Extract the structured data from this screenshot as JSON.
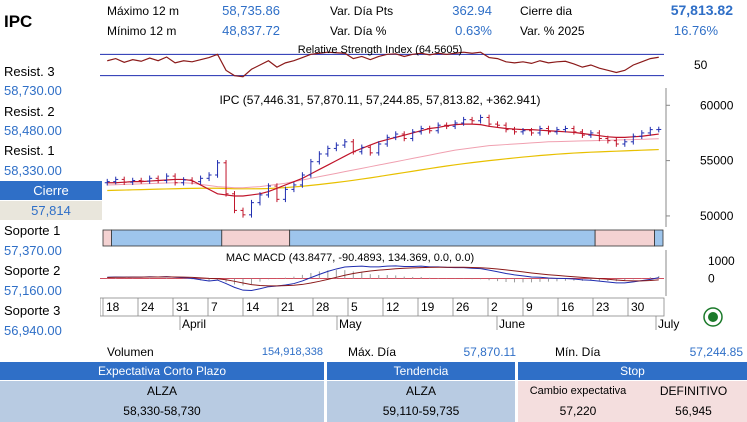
{
  "ticker": "IPC",
  "stats": [
    {
      "label": "Máximo 12 m",
      "value": "58,735.86"
    },
    {
      "label": "Mínimo 12 m",
      "value": "48,837.72"
    },
    {
      "label": "Var. Día Pts",
      "value": "362.94"
    },
    {
      "label": "Var. Día %",
      "value": "0.63%"
    },
    {
      "label": "Cierre dia",
      "value": "57,813.82"
    },
    {
      "label": "Var. % 2025",
      "value": "16.76%"
    }
  ],
  "levels": {
    "resist3": {
      "label": "Resist. 3",
      "value": "58,730.00"
    },
    "resist2": {
      "label": "Resist. 2",
      "value": "58,480.00"
    },
    "resist1": {
      "label": "Resist. 1",
      "value": "58,330.00"
    },
    "cierre": {
      "label": "Cierre",
      "value": "57,814"
    },
    "soporte1": {
      "label": "Soporte 1",
      "value": "57,370.00"
    },
    "soporte2": {
      "label": "Soporte 2",
      "value": "57,160.00"
    },
    "soporte3": {
      "label": "Soporte 3",
      "value": "56,940.00"
    }
  },
  "bottom_stats": {
    "volumen": {
      "label": "Volumen",
      "value": "154,918,338"
    },
    "max_dia": {
      "label": "Máx. Día",
      "value": "57,870.11"
    },
    "min_dia": {
      "label": "Mín. Día",
      "value": "57,244.85"
    }
  },
  "table": {
    "h1": "Expectativa Corto Plazo",
    "h2": "Tendencia",
    "h3": "Stop",
    "r1c1": "ALZA",
    "r2c1": "58,330-58,730",
    "r1c2": "ALZA",
    "r2c2": "59,110-59,735",
    "r1c3a": "Cambio expectativa",
    "r1c3b": "DEFINITIVO",
    "r2c3a": "57,220",
    "r2c3b": "56,945"
  },
  "colors": {
    "accent": "#2f6fc7",
    "up": "#1f2db0",
    "down": "#c0142a",
    "rsi": "#8b1a1a",
    "ma_short": "#c0142a",
    "ma_mid": "#f0a0b0",
    "ma_long": "#e8c000"
  },
  "chart_data": {
    "type": "candlestick",
    "title": "IPC (57,446.31, 57,870.11, 57,244.85, 57,813.82, +362.941)",
    "price_axis": {
      "ylim": [
        49000,
        61200
      ],
      "ticks": [
        50000,
        55000,
        60000
      ],
      "tick_labels": [
        "50000",
        "55000",
        "60000"
      ]
    },
    "x_tick_labels": [
      "18",
      "24",
      "31",
      "7",
      "14",
      "21",
      "28",
      "5",
      "12",
      "19",
      "26",
      "2",
      "9",
      "16",
      "23",
      "30"
    ],
    "month_labels": [
      "April",
      "May",
      "June",
      "July"
    ],
    "closes": [
      53100,
      53300,
      53050,
      53200,
      53150,
      53400,
      53200,
      53600,
      53000,
      53250,
      53100,
      53400,
      53700,
      54800,
      52000,
      50500,
      50100,
      51200,
      51900,
      52700,
      51500,
      52400,
      52800,
      53700,
      54900,
      55600,
      56100,
      56400,
      56700,
      55800,
      56200,
      55700,
      56500,
      57100,
      57400,
      57000,
      57600,
      57900,
      57700,
      58200,
      58100,
      58400,
      58700,
      58600,
      58900,
      58300,
      58200,
      57800,
      57600,
      57700,
      57500,
      57900,
      57600,
      57800,
      57900,
      57600,
      57300,
      57500,
      57000,
      56800,
      56500,
      56700,
      57200,
      57500,
      57800,
      57814
    ],
    "sma_short": [
      53000,
      53000,
      53050,
      53100,
      53100,
      53150,
      53200,
      53250,
      53300,
      53300,
      53200,
      52800,
      52400,
      52000,
      51900,
      51800,
      51800,
      51900,
      52000,
      52200,
      52500,
      52800,
      53100,
      53400,
      53800,
      54200,
      54600,
      55000,
      55400,
      55800,
      56100,
      56400,
      56700,
      56900,
      57100,
      57300,
      57500,
      57700,
      57900,
      58000,
      58150,
      58250,
      58300,
      58300,
      58250,
      58100,
      58000,
      57900,
      57850,
      57800,
      57800,
      57750,
      57700,
      57650,
      57600,
      57550,
      57450,
      57350,
      57250,
      57150,
      57100,
      57100,
      57150,
      57200,
      57300,
      57400
    ],
    "sma_mid": [
      52800,
      52820,
      52850,
      52880,
      52900,
      52920,
      52950,
      52980,
      53000,
      53000,
      52950,
      52850,
      52750,
      52650,
      52600,
      52550,
      52550,
      52600,
      52650,
      52750,
      52850,
      52950,
      53100,
      53250,
      53400,
      53550,
      53700,
      53850,
      54000,
      54150,
      54300,
      54450,
      54600,
      54750,
      54900,
      55050,
      55200,
      55350,
      55500,
      55650,
      55800,
      55950,
      56050,
      56150,
      56250,
      56350,
      56400,
      56450,
      56500,
      56550,
      56600,
      56650,
      56700,
      56720,
      56740,
      56760,
      56780,
      56800,
      56820,
      56840,
      56860,
      56880,
      56900,
      56920,
      56950,
      56980
    ],
    "sma_long": [
      52300,
      52320,
      52340,
      52360,
      52380,
      52400,
      52420,
      52440,
      52460,
      52480,
      52490,
      52500,
      52500,
      52500,
      52480,
      52460,
      52450,
      52450,
      52460,
      52480,
      52520,
      52560,
      52620,
      52680,
      52760,
      52840,
      52930,
      53020,
      53120,
      53220,
      53330,
      53440,
      53560,
      53680,
      53800,
      53920,
      54040,
      54160,
      54280,
      54400,
      54510,
      54620,
      54720,
      54820,
      54910,
      55000,
      55080,
      55160,
      55240,
      55320,
      55390,
      55460,
      55520,
      55580,
      55630,
      55680,
      55720,
      55760,
      55790,
      55820,
      55850,
      55880,
      55910,
      55940,
      55970,
      56000
    ],
    "rsi": {
      "title": "Relative Strength Index (64.5605)",
      "tick_labels": [
        "50"
      ],
      "levels": [
        70,
        30
      ],
      "ylim": [
        20,
        80
      ],
      "values": [
        58,
        62,
        55,
        60,
        57,
        63,
        58,
        65,
        54,
        58,
        56,
        60,
        64,
        70,
        40,
        30,
        28,
        42,
        50,
        58,
        46,
        54,
        58,
        64,
        70,
        72,
        74,
        73,
        72,
        62,
        66,
        60,
        66,
        70,
        71,
        66,
        70,
        72,
        69,
        72,
        70,
        72,
        74,
        72,
        74,
        64,
        62,
        56,
        54,
        56,
        53,
        58,
        54,
        56,
        57,
        52,
        46,
        50,
        44,
        40,
        36,
        40,
        50,
        56,
        62,
        64.56
      ]
    },
    "macd": {
      "title": "MAC MACD (43.8477, -90.4893, 134.369, 0.0, 0.0)",
      "tick_labels": [
        "1000",
        "0"
      ],
      "ylim": [
        -900,
        1400
      ],
      "macd_line": [
        60,
        80,
        70,
        80,
        70,
        90,
        80,
        100,
        60,
        40,
        0,
        -80,
        -150,
        -100,
        -300,
        -520,
        -680,
        -700,
        -600,
        -480,
        -440,
        -380,
        -300,
        -150,
        40,
        230,
        400,
        540,
        650,
        680,
        700,
        660,
        660,
        700,
        720,
        680,
        680,
        700,
        660,
        660,
        630,
        620,
        620,
        580,
        560,
        470,
        380,
        280,
        200,
        140,
        80,
        60,
        20,
        0,
        -10,
        -40,
        -90,
        -110,
        -160,
        -210,
        -260,
        -260,
        -200,
        -130,
        -60,
        43.85
      ],
      "signal_line": [
        50,
        60,
        65,
        70,
        70,
        75,
        78,
        82,
        78,
        70,
        56,
        30,
        -5,
        -25,
        -80,
        -170,
        -270,
        -360,
        -410,
        -430,
        -430,
        -420,
        -400,
        -350,
        -270,
        -170,
        -60,
        60,
        180,
        280,
        360,
        420,
        470,
        510,
        550,
        580,
        600,
        620,
        630,
        640,
        640,
        640,
        635,
        625,
        610,
        580,
        540,
        490,
        430,
        370,
        310,
        260,
        210,
        170,
        130,
        95,
        55,
        20,
        -15,
        -55,
        -95,
        -130,
        -145,
        -145,
        -125,
        -90.49
      ]
    },
    "trend_bands": [
      {
        "from": 0,
        "to": 1,
        "state": "down"
      },
      {
        "from": 1,
        "to": 14,
        "state": "up"
      },
      {
        "from": 14,
        "to": 22,
        "state": "down"
      },
      {
        "from": 22,
        "to": 58,
        "state": "up"
      },
      {
        "from": 58,
        "to": 65,
        "state": "down"
      },
      {
        "from": 65,
        "to": 66,
        "state": "up"
      }
    ]
  }
}
